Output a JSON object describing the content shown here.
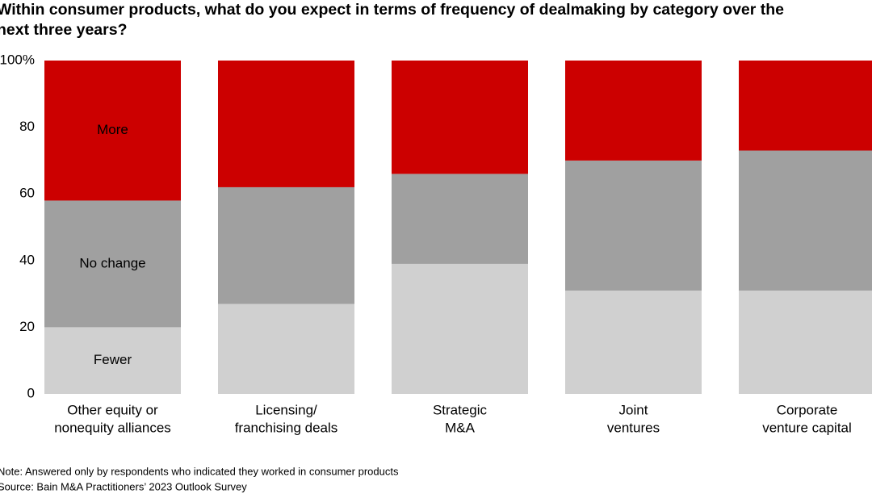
{
  "chart_data": {
    "type": "stacked-bar",
    "title": "Within consumer products, what do you expect in terms of frequency of dealmaking by category over the next three years?",
    "categories": [
      [
        "Other equity or",
        "nonequity alliances"
      ],
      [
        "Licensing/",
        "franchising deals"
      ],
      [
        "Strategic",
        "M&A"
      ],
      [
        "Joint",
        "ventures"
      ],
      [
        "Corporate",
        "venture capital"
      ]
    ],
    "series": [
      {
        "name": "Fewer",
        "color": "#d0d0d0",
        "values": [
          20,
          27,
          39,
          31,
          31
        ]
      },
      {
        "name": "No change",
        "color": "#a0a0a0",
        "values": [
          38,
          35,
          27,
          39,
          42
        ]
      },
      {
        "name": "More",
        "color": "#cc0000",
        "values": [
          42,
          38,
          34,
          30,
          27
        ]
      }
    ],
    "ylim": [
      0,
      100
    ],
    "yticks": [
      0,
      20,
      40,
      60,
      80,
      {
        "value": 100,
        "label": "100%"
      }
    ],
    "note": "Note: Answered only by respondents who indicated they worked in consumer products",
    "source": "Source: Bain M&A Practitioners’ 2023 Outlook Survey"
  }
}
